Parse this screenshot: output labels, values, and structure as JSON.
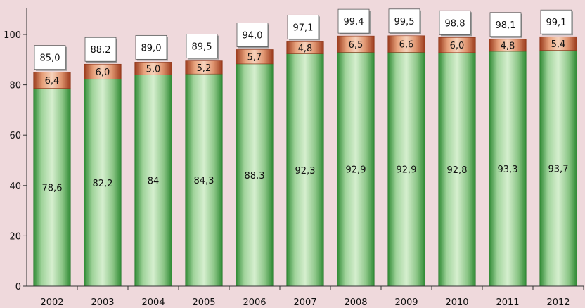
{
  "chart_data": {
    "type": "bar",
    "stacked": true,
    "categories": [
      "2002",
      "2003",
      "2004",
      "2005",
      "2006",
      "2007",
      "2008",
      "2009",
      "2010",
      "2011",
      "2012"
    ],
    "series": [
      {
        "values": [
          78.6,
          82.2,
          84,
          84.3,
          88.3,
          92.3,
          92.9,
          92.9,
          92.8,
          93.3,
          93.7
        ],
        "labels": [
          "78,6",
          "82,2",
          "84",
          "84,3",
          "88,3",
          "92,3",
          "92,9",
          "92,9",
          "92,8",
          "93,3",
          "93,7"
        ],
        "color": "#3f9a3f"
      },
      {
        "values": [
          6.4,
          6.0,
          5.0,
          5.2,
          5.7,
          4.8,
          6.5,
          6.6,
          6.0,
          4.8,
          5.4
        ],
        "labels": [
          "6,4",
          "6,0",
          "5,0",
          "5,2",
          "5,7",
          "4,8",
          "6,5",
          "6,6",
          "6,0",
          "4,8",
          "5,4"
        ],
        "color": "#b5532a"
      }
    ],
    "totals": [
      85.0,
      88.2,
      89.0,
      89.5,
      94.0,
      97.1,
      99.4,
      99.5,
      98.8,
      98.1,
      99.1
    ],
    "total_labels": [
      "85,0",
      "88,2",
      "89,0",
      "89,5",
      "94,0",
      "97,1",
      "99,4",
      "99,5",
      "98,8",
      "98,1",
      "99,1"
    ],
    "ylim": [
      0,
      110
    ],
    "yticks": [
      0,
      20,
      40,
      60,
      80,
      100
    ],
    "title": "",
    "xlabel": "",
    "ylabel": ""
  }
}
